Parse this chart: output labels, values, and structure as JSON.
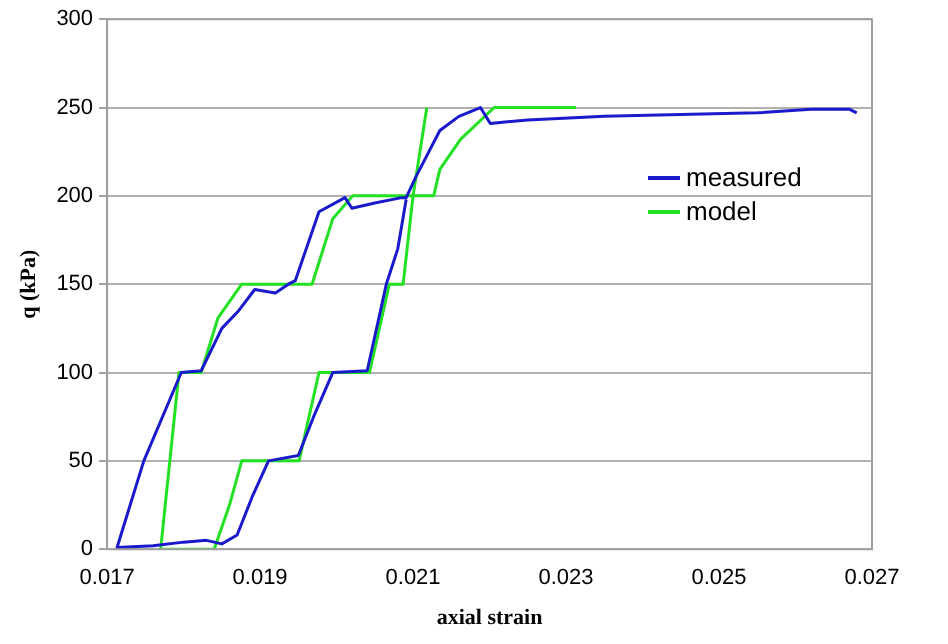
{
  "chart_data": {
    "type": "line",
    "xlabel": "axial strain",
    "ylabel": "q (kPa)",
    "xlim": [
      0.017,
      0.027
    ],
    "xticks": [
      0.017,
      0.019,
      0.021,
      0.023,
      0.025,
      0.027
    ],
    "ylim": [
      0,
      300
    ],
    "yticks": [
      0,
      50,
      100,
      150,
      200,
      250,
      300
    ],
    "grid": "y",
    "legend": "right",
    "marker": "none",
    "line_style": "solid",
    "series": [
      {
        "name": "measured",
        "color": "#1a1acc",
        "x": [
          0.02091,
          0.0208,
          0.02065,
          0.0206,
          0.0204,
          0.01995,
          0.0197,
          0.0195,
          0.01911,
          0.0189,
          0.0187,
          0.0185,
          0.0183,
          0.018,
          0.0176,
          0.01713,
          0.01748,
          0.01797,
          0.01823,
          0.0185,
          0.01872,
          0.01893,
          0.0192,
          0.01937,
          0.01946,
          0.01977,
          0.02011,
          0.0202,
          0.0205,
          0.02085,
          0.02091,
          0.02104,
          0.02135,
          0.0216,
          0.02188,
          0.02201,
          0.0225,
          0.0235,
          0.0245,
          0.0255,
          0.0262,
          0.02671,
          0.0268
        ],
        "values": [
          198,
          170,
          150,
          140,
          101,
          100,
          75,
          53,
          50,
          30,
          8,
          3,
          5,
          4,
          2,
          1,
          50,
          100,
          101,
          125,
          135,
          147,
          145,
          150,
          152,
          191,
          199,
          193,
          196,
          199,
          199,
          211,
          237,
          245,
          250,
          241,
          243,
          245,
          246,
          247,
          249,
          249,
          247
        ]
      },
      {
        "name": "model",
        "color": "#22e022",
        "x": [
          0.02118,
          0.021,
          0.02087,
          0.02069,
          0.02043,
          0.01977,
          0.01951,
          0.01876,
          0.0186,
          0.0184,
          0.0177,
          0.01794,
          0.01823,
          0.01845,
          0.01876,
          0.01968,
          0.01995,
          0.02021,
          0.02127,
          0.02135,
          0.02162,
          0.02206,
          0.02313
        ],
        "values": [
          250,
          200,
          150,
          150,
          100,
          100,
          50,
          50,
          25,
          0,
          0,
          100,
          100,
          131,
          150,
          150,
          187,
          200,
          200,
          215,
          232,
          250,
          250
        ]
      }
    ]
  }
}
